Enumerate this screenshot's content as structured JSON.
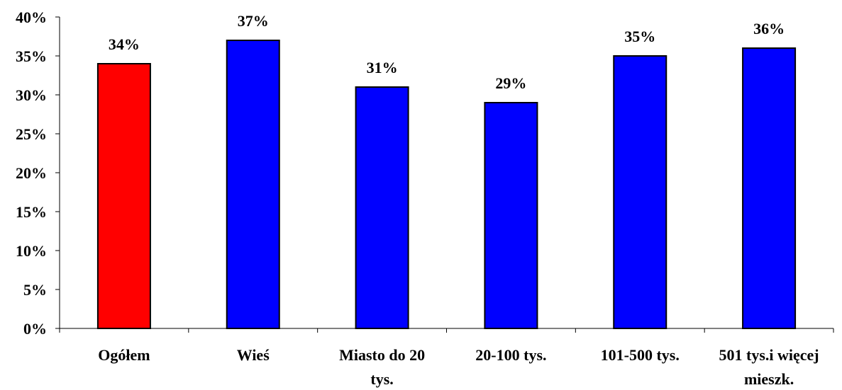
{
  "chart_data": {
    "type": "bar",
    "title": "",
    "xlabel": "",
    "ylabel": "",
    "ylim": [
      0,
      40
    ],
    "yticks": [
      "0%",
      "5%",
      "10%",
      "15%",
      "20%",
      "25%",
      "30%",
      "35%",
      "40%"
    ],
    "categories": [
      [
        "Ogółem"
      ],
      [
        "Wieś"
      ],
      [
        "Miasto do 20",
        "tys."
      ],
      [
        "20-100 tys."
      ],
      [
        "101-500 tys."
      ],
      [
        "501 tys.i więcej",
        "mieszk."
      ]
    ],
    "values": [
      34,
      37,
      31,
      29,
      35,
      36
    ],
    "data_labels": [
      "34%",
      "37%",
      "31%",
      "29%",
      "35%",
      "36%"
    ],
    "bar_colors": [
      "#ff0000",
      "#0000ff",
      "#0000ff",
      "#0000ff",
      "#0000ff",
      "#0000ff"
    ],
    "grid": false,
    "legend": "none"
  }
}
